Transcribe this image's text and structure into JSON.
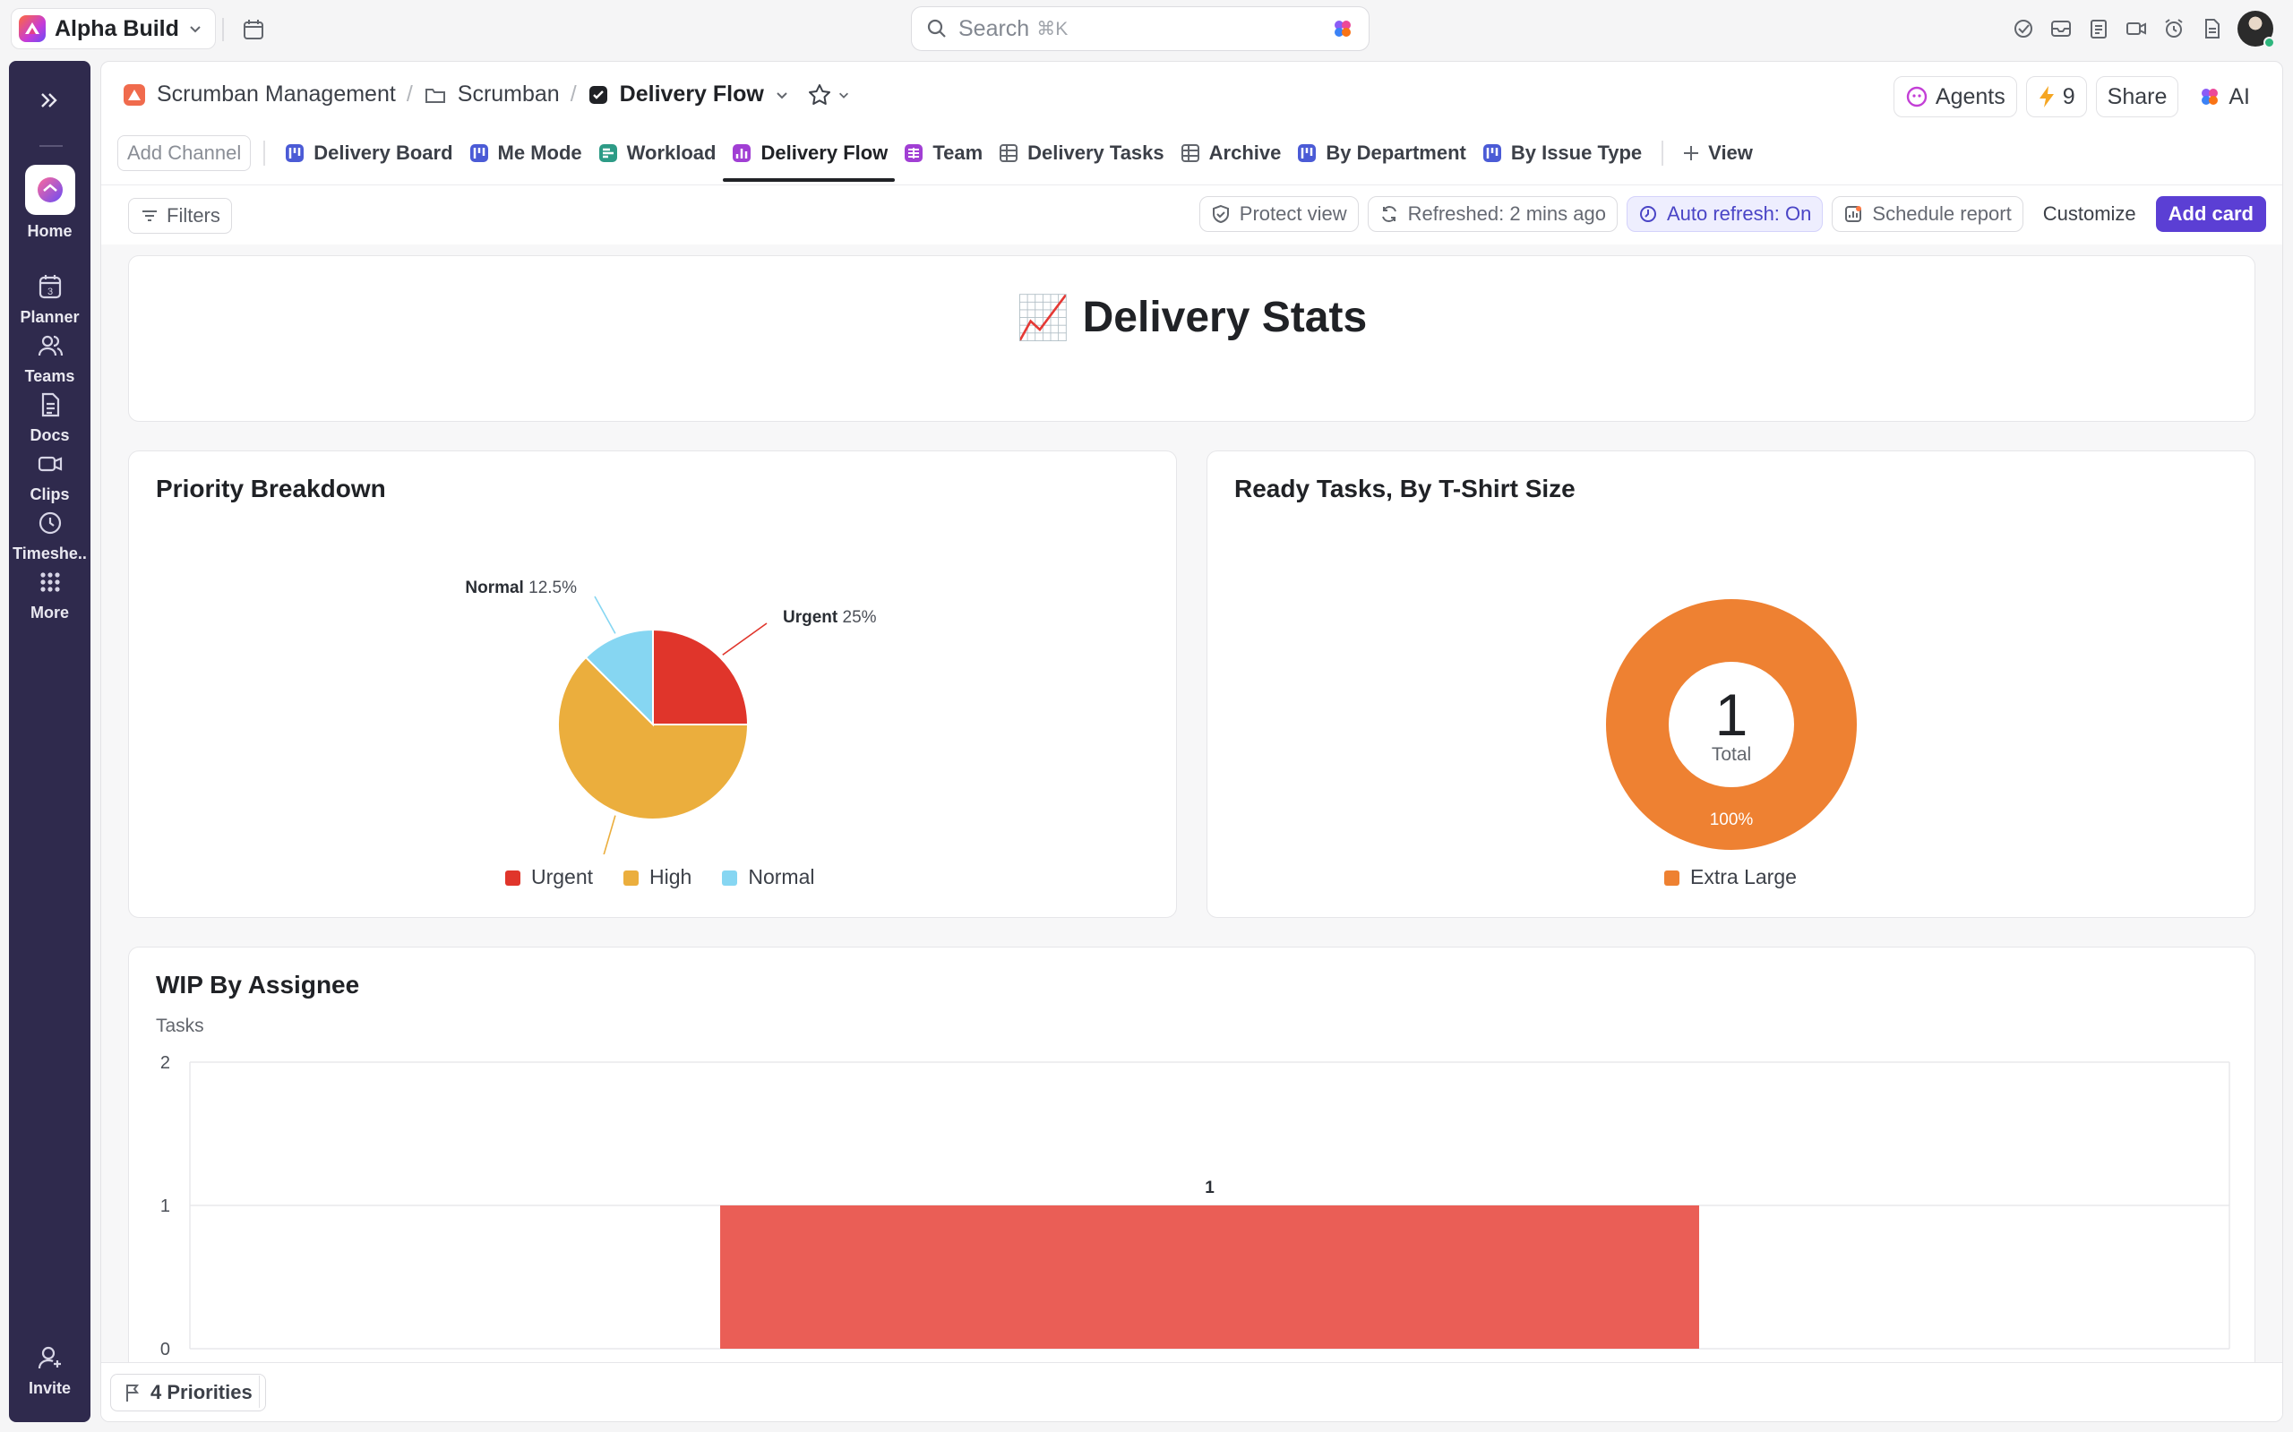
{
  "app": {
    "workspace": "Alpha Build"
  },
  "search": {
    "placeholder": "Search",
    "shortcut": "⌘K"
  },
  "rail": {
    "items": [
      {
        "label": "Home"
      },
      {
        "label": "Planner",
        "badge": "3"
      },
      {
        "label": "Teams"
      },
      {
        "label": "Docs"
      },
      {
        "label": "Clips"
      },
      {
        "label": "Timeshe.."
      },
      {
        "label": "More"
      }
    ],
    "invite": "Invite"
  },
  "breadcrumb": {
    "space": "Scrumban Management",
    "folder": "Scrumban",
    "current": "Delivery Flow"
  },
  "header": {
    "agents": "Agents",
    "automations": "9",
    "share": "Share",
    "ai": "AI"
  },
  "tabs": {
    "add_channel": "Add Channel",
    "items": [
      {
        "label": "Delivery Board"
      },
      {
        "label": "Me Mode"
      },
      {
        "label": "Workload"
      },
      {
        "label": "Delivery Flow",
        "active": true
      },
      {
        "label": "Team"
      },
      {
        "label": "Delivery Tasks"
      },
      {
        "label": "Archive"
      },
      {
        "label": "By Department"
      },
      {
        "label": "By Issue Type"
      }
    ],
    "view": "View"
  },
  "toolbar": {
    "filters": "Filters",
    "protect_view": "Protect view",
    "refreshed": "Refreshed: 2 mins ago",
    "auto_refresh": "Auto refresh: On",
    "schedule_report": "Schedule report",
    "customize": "Customize",
    "add_card": "Add card"
  },
  "dashboard": {
    "title": "Delivery Stats",
    "title_emoji": "📈"
  },
  "colors": {
    "urgent": "#e0352b",
    "high": "#ebae3d",
    "normal": "#86d6f2",
    "extra_large": "#ee8132",
    "bar": "#ea5e56",
    "accent": "#5b3fd4"
  },
  "chart_data": [
    {
      "type": "pie",
      "title": "Priority Breakdown",
      "categories": [
        "Urgent",
        "High",
        "Normal"
      ],
      "values": [
        25,
        62.5,
        12.5
      ],
      "labels": [
        "25%",
        "62.5%",
        "12.5%"
      ],
      "legend": "bottom"
    },
    {
      "type": "pie",
      "title": "Ready Tasks, By T-Shirt Size",
      "categories": [
        "Extra Large"
      ],
      "values": [
        100
      ],
      "labels": [
        "100%"
      ],
      "center_value": "1",
      "center_label": "Total",
      "legend": "bottom"
    },
    {
      "type": "bar",
      "title": "WIP By Assignee",
      "ylabel": "Tasks",
      "categories": [
        ""
      ],
      "values": [
        1
      ],
      "data_labels": [
        "1"
      ],
      "ylim": [
        0,
        2
      ],
      "yticks": [
        "2",
        "1",
        "0"
      ],
      "grid": true
    }
  ],
  "footer": {
    "priorities": "4 Priorities"
  }
}
